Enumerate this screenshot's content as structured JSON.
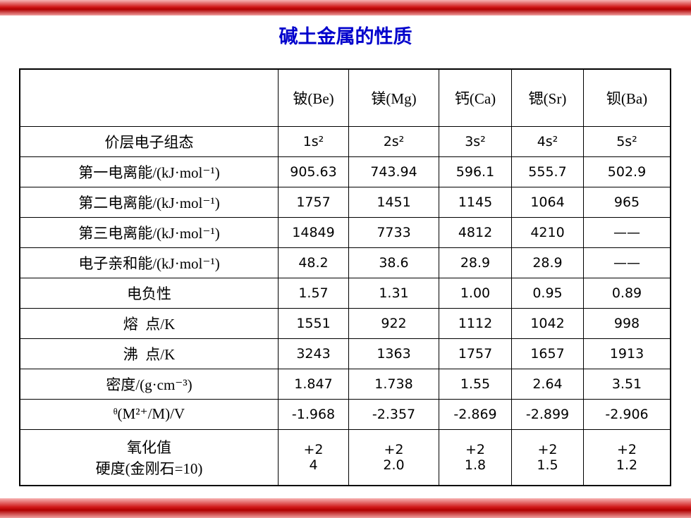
{
  "title": "碱土金属的性质",
  "table": {
    "header": [
      "铍(Be)",
      "镁(Mg)",
      "钙(Ca)",
      "锶(Sr)",
      "钡(Ba)"
    ],
    "rows": [
      [
        "价层电子组态",
        "1s²",
        "2s²",
        "3s²",
        "4s²",
        "5s²"
      ],
      [
        "第一电离能/(kJ·mol⁻¹)",
        "905.63",
        "743.94",
        "596.1",
        "555.7",
        "502.9"
      ],
      [
        "第二电离能/(kJ·mol⁻¹)",
        "1757",
        "1451",
        "1145",
        "1064",
        "965"
      ],
      [
        "第三电离能/(kJ·mol⁻¹)",
        "14849",
        "7733",
        "4812",
        "4210",
        "——"
      ],
      [
        "电子亲和能/(kJ·mol⁻¹)",
        "48.2",
        "38.6",
        "28.9",
        "28.9",
        "——"
      ],
      [
        "电负性",
        "1.57",
        "1.31",
        "1.00",
        "0.95",
        "0.89"
      ],
      [
        "熔  点/K",
        "1551",
        "922",
        "1112",
        "1042",
        "998"
      ],
      [
        "沸  点/K",
        "3243",
        "1363",
        "1757",
        "1657",
        "1913"
      ],
      [
        "密度/(g·cm⁻³)",
        "1.847",
        "1.738",
        "1.55",
        "2.64",
        "3.51"
      ],
      [
        "ᶿ(M²⁺/M)/V",
        "-1.968",
        "-2.357",
        "-2.869",
        "-2.899",
        "-2.906"
      ],
      [
        [
          "氧化值",
          "硬度(金刚石=10)"
        ],
        [
          "+2",
          "4"
        ],
        [
          "+2",
          "2.0"
        ],
        [
          "+2",
          "1.8"
        ],
        [
          "+2",
          "1.5"
        ],
        [
          "+2",
          "1.2"
        ]
      ]
    ]
  }
}
